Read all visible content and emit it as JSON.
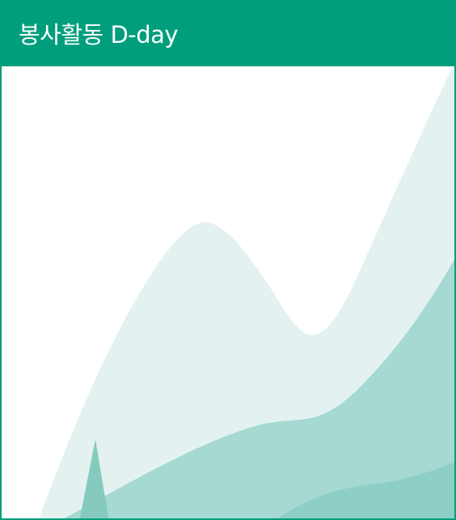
{
  "widget": {
    "title": "봉사활동 D-day"
  },
  "colors": {
    "brand": "#009e7c",
    "background": "#ffffff",
    "wave_light": "#e3f2f0",
    "wave_mid": "#a5d9d2",
    "wave_dark": "#8dcfc6",
    "spike": "#86cabe"
  },
  "decoration": {
    "icon": "mountain-wave-illustration"
  }
}
